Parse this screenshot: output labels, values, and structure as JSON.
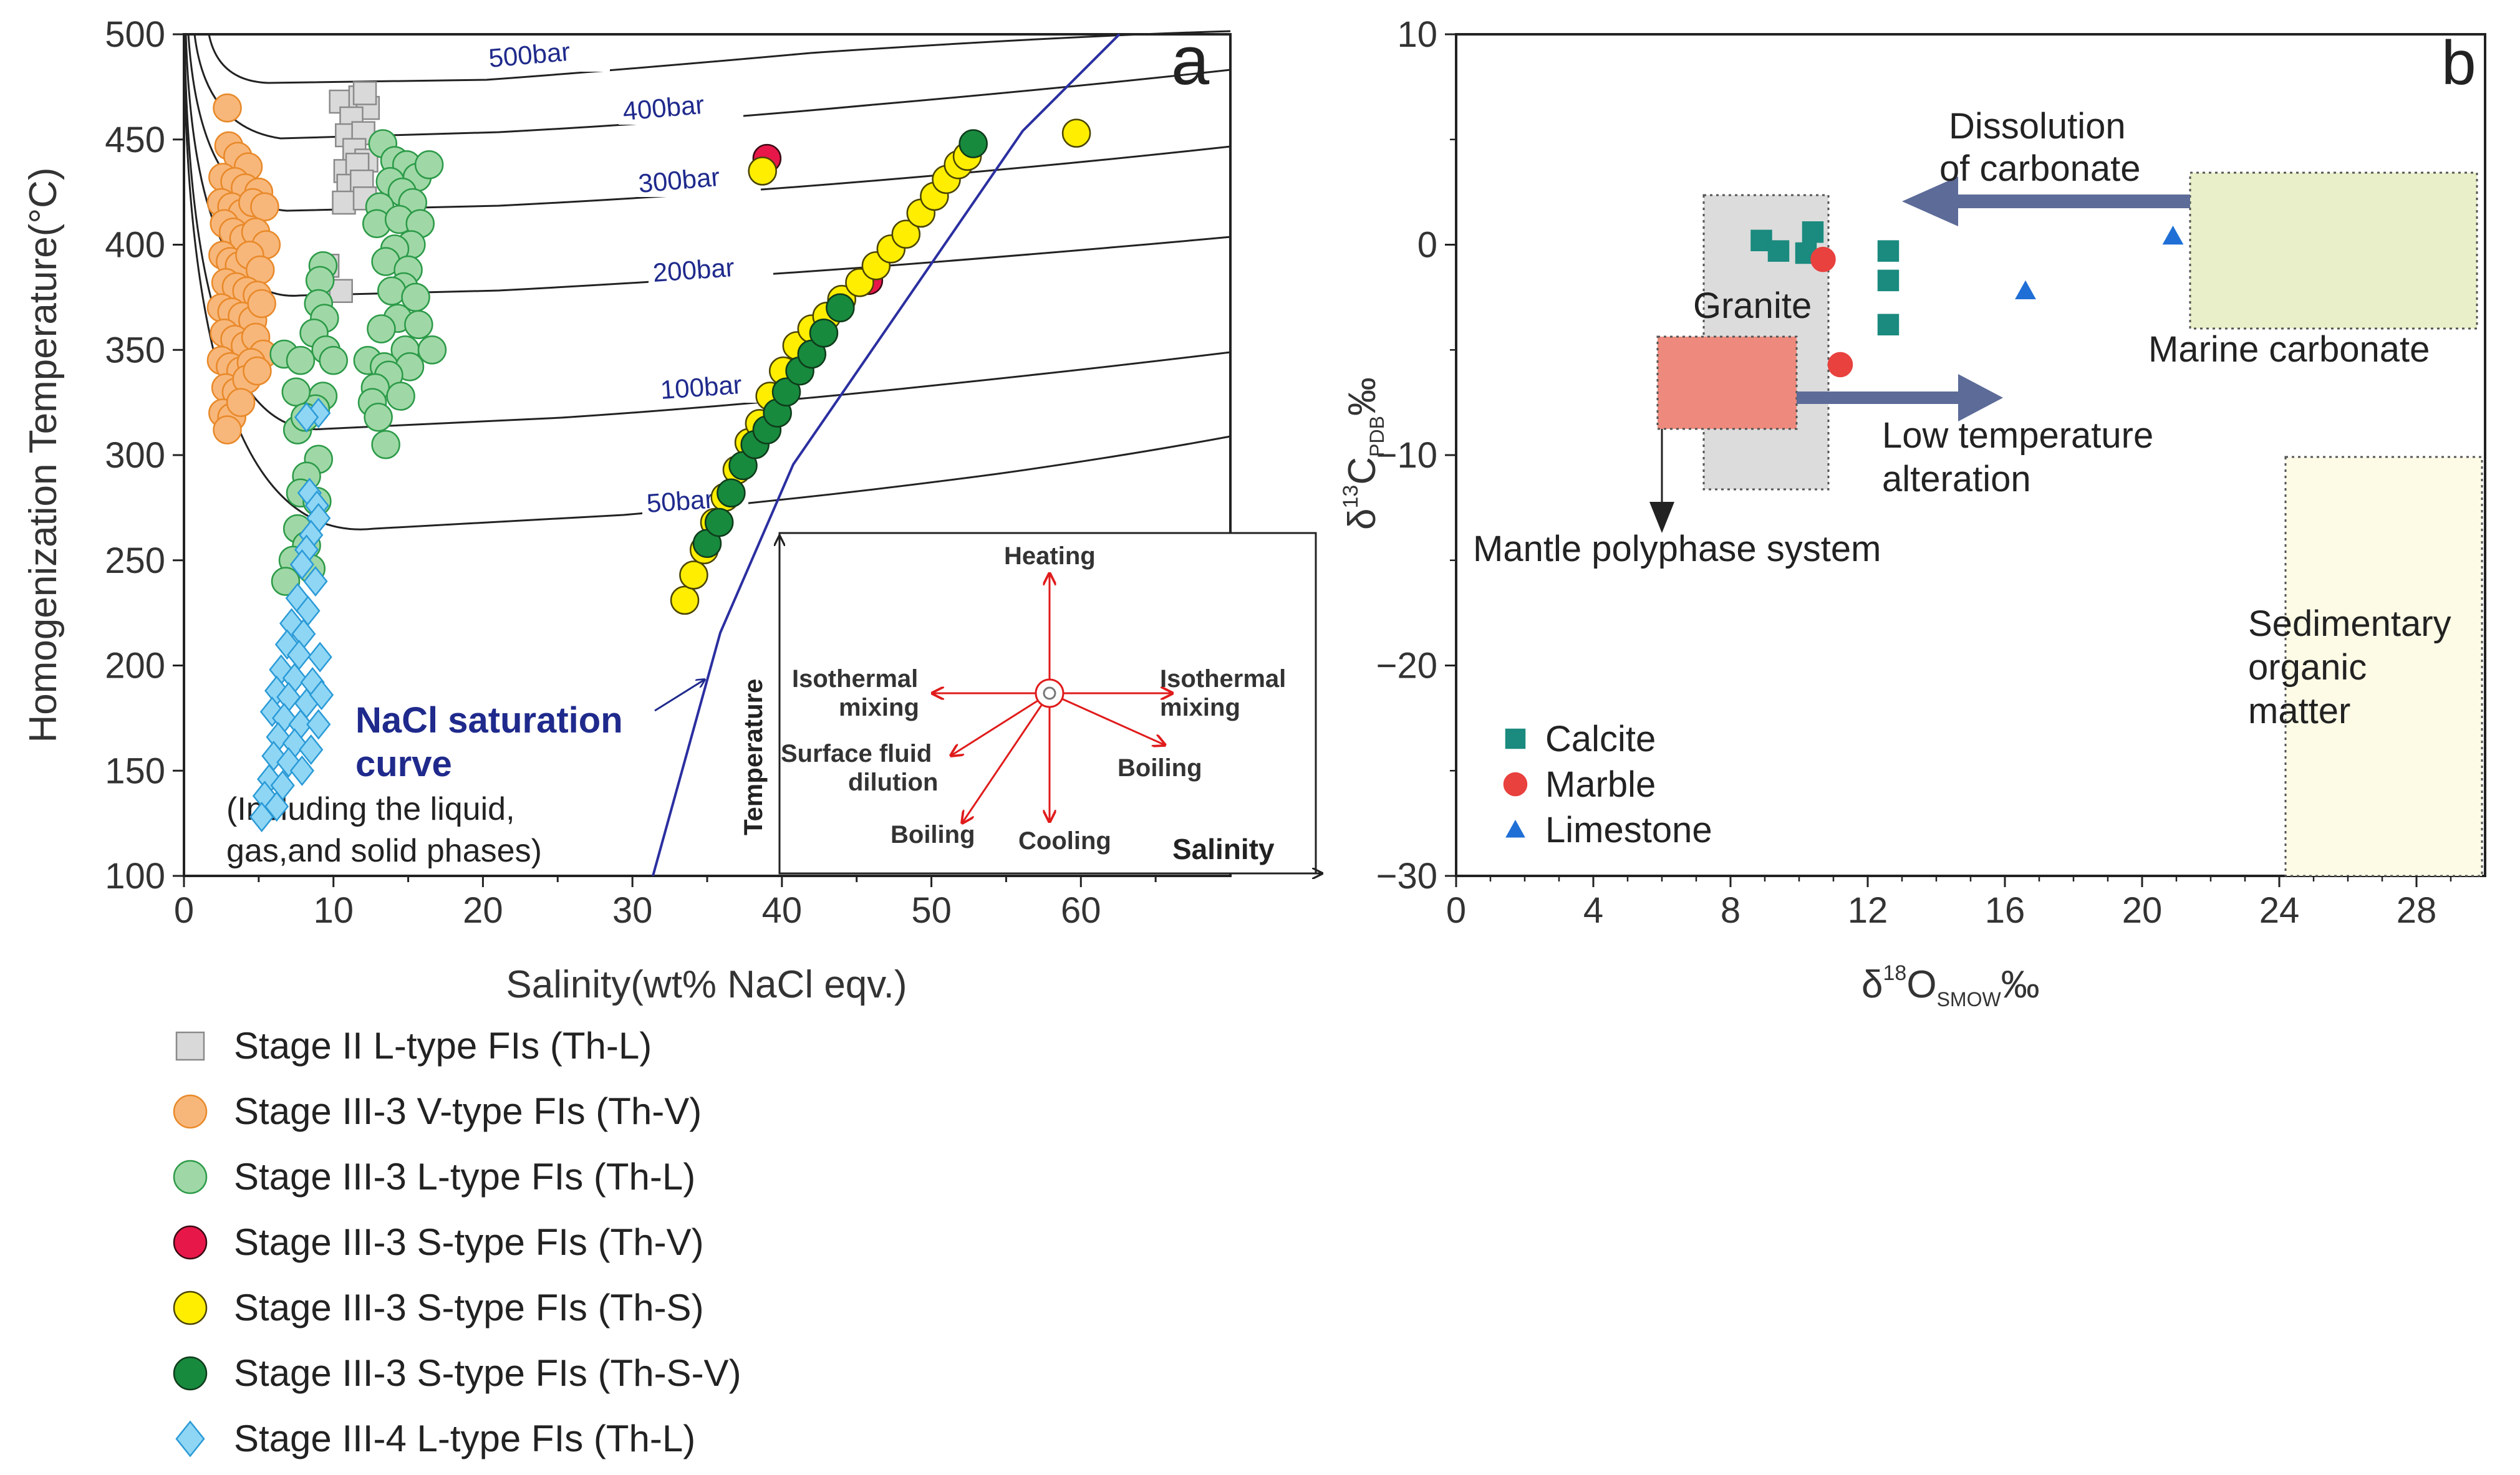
{
  "chart_data": [
    {
      "panel": "a",
      "type": "scatter",
      "panel_label": "a",
      "xlabel": "Salinity(wt% NaCl eqv.)",
      "ylabel": "Homogenization Temperature(°C)",
      "xlim": [
        0,
        70
      ],
      "ylim": [
        100,
        500
      ],
      "x_ticks": [
        "0",
        "10",
        "20",
        "30",
        "40",
        "50",
        "60"
      ],
      "y_ticks": [
        "100",
        "150",
        "200",
        "250",
        "300",
        "350",
        "400",
        "450",
        "500"
      ],
      "isobar_labels": [
        "500bar",
        "400bar",
        "300bar",
        "200bar",
        "100bar",
        "50bar"
      ],
      "annotation": {
        "title1": "NaCl saturation",
        "title2": "curve",
        "note1": "(Including the liquid,",
        "note2": "gas,and solid phases)"
      },
      "legend": [
        {
          "label": "Stage II L-type FIs (Th-L)",
          "marker": "square",
          "color": "#d9d9d9"
        },
        {
          "label": "Stage III-3 V-type FIs (Th-V)",
          "marker": "circle",
          "color": "#f8b77a"
        },
        {
          "label": "Stage III-3 L-type FIs (Th-L)",
          "marker": "circle",
          "color": "#9fd8a6"
        },
        {
          "label": "Stage III-3 S-type FIs (Th-V)",
          "marker": "circle",
          "color": "#e8174a"
        },
        {
          "label": "Stage III-3 S-type FIs (Th-S)",
          "marker": "circle",
          "color": "#ffee00"
        },
        {
          "label": "Stage III-3 S-type FIs (Th-S-V)",
          "marker": "circle",
          "color": "#178a3e"
        },
        {
          "label": "Stage III-4 L-type FIs (Th-L)",
          "marker": "diamond",
          "color": "#8fd6f5"
        }
      ],
      "series": [
        {
          "name": "Stage II L-type FIs (Th-L)",
          "points": [
            [
              10.5,
              468
            ],
            [
              11.8,
              470
            ],
            [
              12.3,
              465
            ],
            [
              12.1,
              472
            ],
            [
              11.2,
              460
            ],
            [
              10.9,
              452
            ],
            [
              12.0,
              453
            ],
            [
              11.4,
              445
            ],
            [
              12.2,
              440
            ],
            [
              10.8,
              435
            ],
            [
              11.6,
              438
            ],
            [
              11.0,
              428
            ],
            [
              11.9,
              430
            ],
            [
              10.7,
              420
            ],
            [
              12.1,
              422
            ],
            [
              9.6,
              390
            ],
            [
              10.5,
              378
            ]
          ]
        },
        {
          "name": "Stage III-3 V-type FIs (Th-V)",
          "points": [
            [
              2.9,
              465
            ],
            [
              3.0,
              447
            ],
            [
              3.6,
              442
            ],
            [
              4.3,
              437
            ],
            [
              2.6,
              432
            ],
            [
              3.4,
              430
            ],
            [
              4.1,
              427
            ],
            [
              5.0,
              425
            ],
            [
              2.5,
              420
            ],
            [
              3.2,
              418
            ],
            [
              3.9,
              415
            ],
            [
              4.6,
              420
            ],
            [
              5.4,
              418
            ],
            [
              2.7,
              410
            ],
            [
              3.3,
              406
            ],
            [
              4.0,
              403
            ],
            [
              4.8,
              406
            ],
            [
              5.5,
              400
            ],
            [
              2.6,
              395
            ],
            [
              3.1,
              392
            ],
            [
              3.7,
              390
            ],
            [
              4.4,
              395
            ],
            [
              5.1,
              388
            ],
            [
              2.8,
              382
            ],
            [
              3.5,
              380
            ],
            [
              4.2,
              378
            ],
            [
              4.9,
              376
            ],
            [
              2.5,
              370
            ],
            [
              3.2,
              368
            ],
            [
              3.9,
              366
            ],
            [
              4.6,
              364
            ],
            [
              5.2,
              372
            ],
            [
              2.7,
              358
            ],
            [
              3.4,
              355
            ],
            [
              4.1,
              352
            ],
            [
              4.8,
              356
            ],
            [
              5.3,
              348
            ],
            [
              2.5,
              345
            ],
            [
              3.1,
              342
            ],
            [
              3.8,
              340
            ],
            [
              4.5,
              344
            ],
            [
              2.8,
              332
            ],
            [
              3.5,
              330
            ],
            [
              4.2,
              336
            ],
            [
              4.9,
              340
            ],
            [
              2.6,
              320
            ],
            [
              3.2,
              318
            ],
            [
              2.9,
              312
            ],
            [
              3.8,
              325
            ]
          ]
        },
        {
          "name": "Stage III-3 L-type FIs (Th-L)",
          "points": [
            [
              13.3,
              448
            ],
            [
              14.1,
              440
            ],
            [
              14.9,
              438
            ],
            [
              15.6,
              432
            ],
            [
              16.4,
              438
            ],
            [
              13.8,
              430
            ],
            [
              14.6,
              425
            ],
            [
              15.3,
              420
            ],
            [
              13.1,
              418
            ],
            [
              12.9,
              410
            ],
            [
              14.4,
              412
            ],
            [
              15.8,
              410
            ],
            [
              15.2,
              400
            ],
            [
              14.1,
              398
            ],
            [
              13.5,
              392
            ],
            [
              15.0,
              388
            ],
            [
              9.3,
              390
            ],
            [
              9.1,
              383
            ],
            [
              14.7,
              380
            ],
            [
              13.9,
              378
            ],
            [
              15.5,
              375
            ],
            [
              9.0,
              372
            ],
            [
              9.4,
              365
            ],
            [
              14.3,
              365
            ],
            [
              13.2,
              360
            ],
            [
              15.7,
              362
            ],
            [
              8.7,
              358
            ],
            [
              9.5,
              350
            ],
            [
              10.0,
              345
            ],
            [
              14.8,
              350
            ],
            [
              16.6,
              350
            ],
            [
              6.7,
              348
            ],
            [
              7.8,
              345
            ],
            [
              12.3,
              345
            ],
            [
              13.4,
              342
            ],
            [
              15.1,
              342
            ],
            [
              13.7,
              338
            ],
            [
              12.8,
              332
            ],
            [
              9.3,
              328
            ],
            [
              8.8,
              322
            ],
            [
              7.5,
              330
            ],
            [
              12.6,
              325
            ],
            [
              13.0,
              318
            ],
            [
              14.5,
              328
            ],
            [
              7.6,
              312
            ],
            [
              8.1,
              318
            ],
            [
              13.5,
              305
            ],
            [
              9.0,
              298
            ],
            [
              8.2,
              290
            ],
            [
              7.8,
              282
            ],
            [
              8.9,
              278
            ],
            [
              7.6,
              265
            ],
            [
              8.2,
              257
            ],
            [
              7.3,
              250
            ],
            [
              8.5,
              246
            ],
            [
              6.8,
              240
            ]
          ]
        },
        {
          "name": "Stage III-3 S-type FIs (Th-V)",
          "points": [
            [
              39.0,
              441
            ],
            [
              45.8,
              383
            ]
          ]
        },
        {
          "name": "Stage III-3 S-type FIs (Th-S)",
          "points": [
            [
              33.5,
              231
            ],
            [
              34.1,
              243
            ],
            [
              34.8,
              255
            ],
            [
              35.5,
              268
            ],
            [
              36.2,
              280
            ],
            [
              37.0,
              293
            ],
            [
              37.8,
              306
            ],
            [
              38.5,
              315
            ],
            [
              39.2,
              328
            ],
            [
              40.1,
              340
            ],
            [
              41.0,
              352
            ],
            [
              42.0,
              360
            ],
            [
              43.0,
              366
            ],
            [
              44.0,
              374
            ],
            [
              45.2,
              382
            ],
            [
              46.3,
              390
            ],
            [
              47.3,
              398
            ],
            [
              48.3,
              405
            ],
            [
              49.3,
              415
            ],
            [
              50.2,
              423
            ],
            [
              51.0,
              431
            ],
            [
              51.8,
              438
            ],
            [
              52.4,
              442
            ],
            [
              38.7,
              435
            ],
            [
              59.7,
              453
            ]
          ]
        },
        {
          "name": "Stage III-3 S-type FIs (Th-S-V)",
          "points": [
            [
              35.0,
              258
            ],
            [
              35.8,
              268
            ],
            [
              36.6,
              282
            ],
            [
              37.4,
              295
            ],
            [
              38.2,
              305
            ],
            [
              39.0,
              312
            ],
            [
              39.7,
              320
            ],
            [
              40.3,
              330
            ],
            [
              41.2,
              340
            ],
            [
              42.0,
              348
            ],
            [
              42.8,
              358
            ],
            [
              43.9,
              370
            ],
            [
              52.8,
              448
            ]
          ]
        },
        {
          "name": "Stage III-4 L-type FIs (Th-L)",
          "points": [
            [
              9.0,
              320
            ],
            [
              8.2,
              318
            ],
            [
              8.4,
              282
            ],
            [
              8.9,
              276
            ],
            [
              9.0,
              270
            ],
            [
              8.5,
              262
            ],
            [
              8.2,
              255
            ],
            [
              7.9,
              248
            ],
            [
              8.8,
              240
            ],
            [
              7.6,
              232
            ],
            [
              8.3,
              226
            ],
            [
              7.2,
              220
            ],
            [
              8.0,
              215
            ],
            [
              6.9,
              210
            ],
            [
              7.7,
              205
            ],
            [
              9.1,
              204
            ],
            [
              6.5,
              198
            ],
            [
              7.4,
              194
            ],
            [
              8.6,
              192
            ],
            [
              6.2,
              188
            ],
            [
              7.0,
              185
            ],
            [
              8.2,
              182
            ],
            [
              5.9,
              178
            ],
            [
              6.7,
              175
            ],
            [
              7.8,
              172
            ],
            [
              9.0,
              172
            ],
            [
              6.3,
              166
            ],
            [
              7.4,
              163
            ],
            [
              8.5,
              160
            ],
            [
              6.0,
              157
            ],
            [
              7.0,
              154
            ],
            [
              7.9,
              150
            ],
            [
              5.7,
              146
            ],
            [
              6.6,
              143
            ],
            [
              5.4,
              138
            ],
            [
              6.2,
              133
            ],
            [
              5.2,
              128
            ],
            [
              9.2,
              186
            ]
          ]
        }
      ],
      "inset": {
        "center": "",
        "ylabel": "Temperature",
        "xlabel": "Salinity",
        "labels": {
          "heating": "Heating",
          "iso_left_1": "Isothermal",
          "iso_left_2": "mixing",
          "iso_right_1": "Isothermal",
          "iso_right_2": "mixing",
          "surface_1": "Surface fluid",
          "surface_2": "dilution",
          "boiling_right": "Boiling",
          "boiling_left": "Boiling",
          "cooling": "Cooling"
        }
      }
    },
    {
      "panel": "b",
      "type": "scatter",
      "panel_label": "b",
      "xlim": [
        0,
        30
      ],
      "ylim": [
        -30,
        10
      ],
      "x_ticks": [
        "0",
        "4",
        "8",
        "12",
        "16",
        "20",
        "24",
        "28"
      ],
      "y_ticks": [
        "10",
        "0",
        "−10",
        "−20",
        "−30"
      ],
      "xlabel": {
        "main": "δ",
        "sup": "18",
        "o": "O",
        "sub": "SMOW",
        "unit": "‰"
      },
      "ylabel": {
        "main": "δ",
        "sup": "13",
        "c": "C",
        "sub": "PDB",
        "unit": "‰"
      },
      "legend": [
        {
          "label": "Calcite",
          "marker": "square",
          "color": "#1b8a7f"
        },
        {
          "label": "Marble",
          "marker": "circle",
          "color": "#e8413e"
        },
        {
          "label": "Limestone",
          "marker": "triangle",
          "color": "#1f6fd6"
        }
      ],
      "series": [
        {
          "name": "Calcite",
          "points": [
            [
              8.9,
              0.2
            ],
            [
              9.4,
              -0.3
            ],
            [
              10.4,
              0.6
            ],
            [
              10.2,
              -0.4
            ],
            [
              12.6,
              -0.3
            ],
            [
              12.6,
              -1.7
            ],
            [
              12.6,
              -3.8
            ]
          ]
        },
        {
          "name": "Marble",
          "points": [
            [
              10.7,
              -0.7
            ],
            [
              11.2,
              -5.7
            ]
          ]
        },
        {
          "name": "Limestone",
          "points": [
            [
              20.9,
              0.4
            ],
            [
              16.6,
              -2.2
            ]
          ]
        }
      ],
      "fields": [
        {
          "name": "Granite",
          "x": [
            7.1,
            10.7
          ],
          "y": [
            -11.6,
            2.3
          ],
          "color": "#dcdcdc"
        },
        {
          "name": "Mantle polyphase system",
          "x": [
            5.8,
            9.8
          ],
          "y": [
            -8.7,
            -4.3
          ],
          "color": "#ee8a7d"
        },
        {
          "name": "Marine carbonate",
          "x": [
            21.2,
            29.0
          ],
          "y": [
            -4.0,
            3.4
          ],
          "color": "#e9efc8"
        },
        {
          "name": "Sedimentary organic matter",
          "x": [
            23.8,
            29.4
          ],
          "y": [
            -30,
            -10
          ],
          "color": "#fdfbe6"
        }
      ],
      "labels": {
        "dissolution_1": "Dissolution",
        "dissolution_2": "of carbonate",
        "granite": "Granite",
        "marine": "Marine  carbonate",
        "low_temp_1": "Low temperature",
        "low_temp_2": "alteration",
        "mantle": "Mantle polyphase system",
        "sed_1": "Sedimentary",
        "sed_2": "organic",
        "sed_3": "matter"
      }
    }
  ]
}
